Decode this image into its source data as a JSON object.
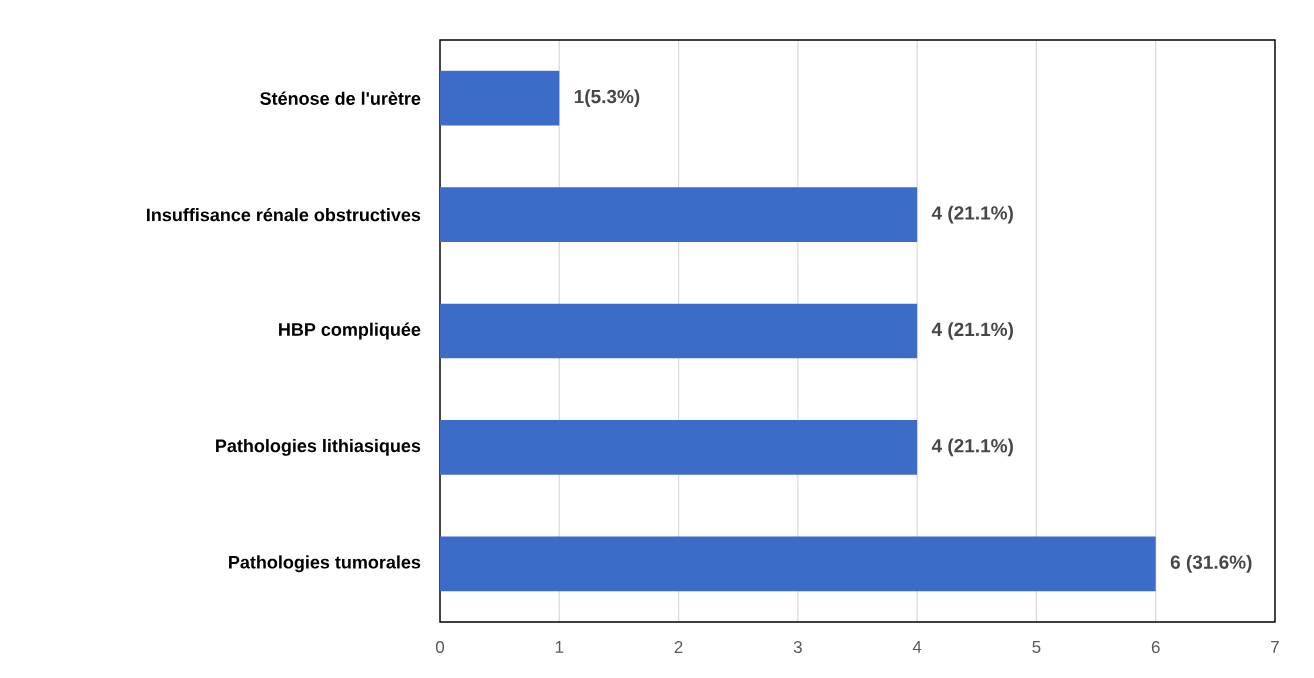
{
  "chart_data": {
    "type": "bar",
    "orientation": "horizontal",
    "categories": [
      "Sténose de l'urètre",
      "Insuffisance rénale obstructives",
      "HBP compliquée",
      "Pathologies lithiasiques",
      "Pathologies tumorales"
    ],
    "values": [
      1,
      4,
      4,
      4,
      6
    ],
    "value_labels": [
      "1(5.3%)",
      "4 (21.1%)",
      "4 (21.1%)",
      "4 (21.1%)",
      "6 (31.6%)"
    ],
    "color": "#3c6bc8",
    "xlim": [
      0,
      7
    ],
    "xticks": [
      0,
      1,
      2,
      3,
      4,
      5,
      6,
      7
    ],
    "grid": "x"
  }
}
